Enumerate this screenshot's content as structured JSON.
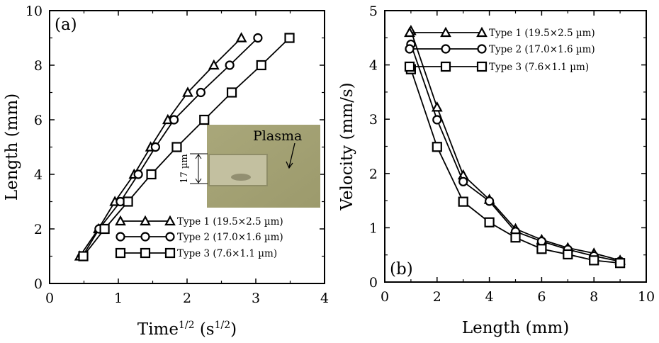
{
  "chart_data": [
    {
      "type": "line",
      "panel_label": "(a)",
      "xlabel": {
        "base": "Time",
        "sup": "1/2",
        "unit_open": " (s",
        "unit_sup": "1/2",
        "unit_close": ")"
      },
      "ylabel": "Length (mm)",
      "xlim": [
        0,
        4
      ],
      "ylim": [
        0,
        10
      ],
      "xticks": [
        0,
        1,
        2,
        3,
        4
      ],
      "yticks": [
        0,
        2,
        4,
        6,
        8,
        10
      ],
      "legend_position": "bottom-right",
      "inset": {
        "label": "Plasma",
        "scale_label": "17 µm"
      },
      "series": [
        {
          "name": "Type 1 (19.5×2.5 µm)",
          "marker": "triangle",
          "x": [
            0.44,
            0.71,
            0.95,
            1.23,
            1.47,
            1.72,
            2.01,
            2.39,
            2.79
          ],
          "y": [
            1,
            2,
            3,
            4,
            5,
            6,
            7,
            8,
            9
          ]
        },
        {
          "name": "Type 2 (17.0×1.6 µm)",
          "marker": "circle",
          "x": [
            0.48,
            0.72,
            1.03,
            1.29,
            1.54,
            1.81,
            2.2,
            2.62,
            3.03
          ],
          "y": [
            1,
            2,
            3,
            4,
            5,
            6,
            7,
            8,
            9
          ]
        },
        {
          "name": "Type 3 (7.6×1.1 µm)",
          "marker": "square",
          "x": [
            0.49,
            0.8,
            1.14,
            1.48,
            1.85,
            2.25,
            2.65,
            3.08,
            3.49
          ],
          "y": [
            1,
            2,
            3,
            4,
            5,
            6,
            7,
            8,
            9
          ]
        }
      ]
    },
    {
      "type": "line",
      "panel_label": "(b)",
      "xlabel": "Length (mm)",
      "ylabel": "Velocity (mm/s)",
      "xlim": [
        0,
        10
      ],
      "ylim": [
        0,
        5
      ],
      "xticks": [
        0,
        2,
        4,
        6,
        8,
        10
      ],
      "yticks": [
        0,
        1,
        2,
        3,
        4,
        5
      ],
      "legend_position": "top-right",
      "series": [
        {
          "name": "Type 1 (19.5×2.5 µm)",
          "marker": "triangle",
          "x": [
            1,
            2,
            3,
            4,
            5,
            6,
            7,
            8,
            9
          ],
          "y": [
            4.63,
            3.22,
            1.97,
            1.52,
            0.98,
            0.78,
            0.63,
            0.53,
            0.4
          ]
        },
        {
          "name": "Type 2 (17.0×1.6 µm)",
          "marker": "circle",
          "x": [
            1,
            2,
            3,
            4,
            5,
            6,
            7,
            8,
            9
          ],
          "y": [
            4.38,
            2.99,
            1.85,
            1.49,
            0.93,
            0.75,
            0.6,
            0.48,
            0.38
          ]
        },
        {
          "name": "Type 3 (7.6×1.1 µm)",
          "marker": "square",
          "x": [
            1,
            2,
            3,
            4,
            5,
            6,
            7,
            8,
            9
          ],
          "y": [
            3.92,
            2.49,
            1.48,
            1.1,
            0.82,
            0.61,
            0.51,
            0.4,
            0.35
          ]
        }
      ]
    }
  ]
}
